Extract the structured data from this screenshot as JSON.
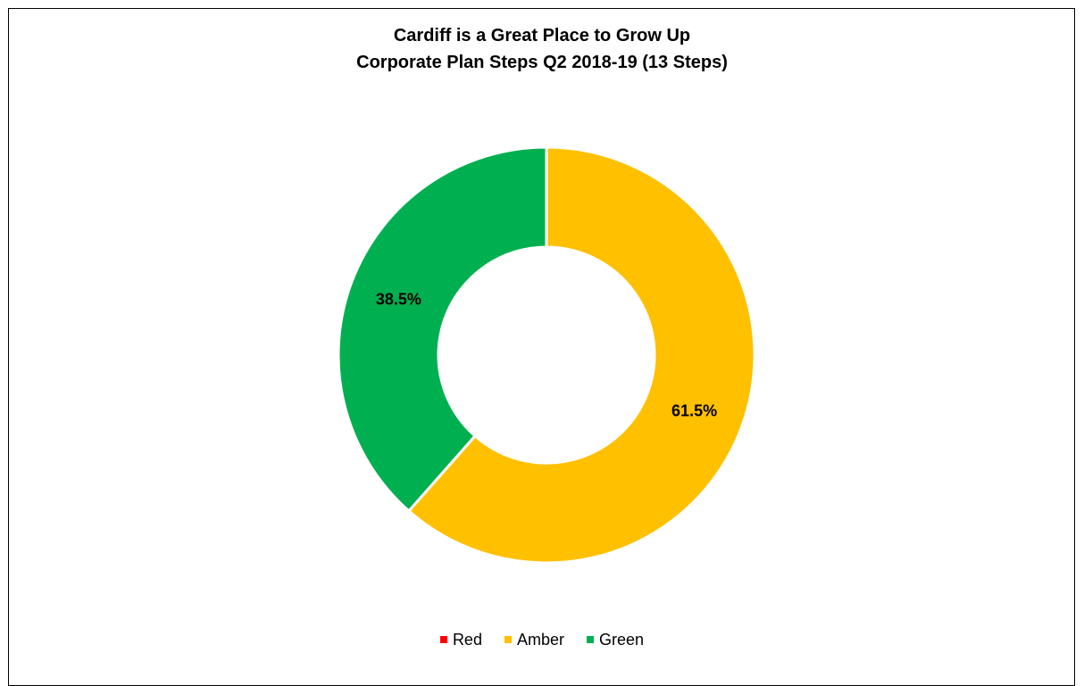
{
  "chart_data": {
    "type": "pie",
    "variant": "donut",
    "title": "Cardiff is a Great Place to Grow Up",
    "subtitle": "Corporate Plan Steps Q2 2018-19 (13 Steps)",
    "categories": [
      "Red",
      "Amber",
      "Green"
    ],
    "values": [
      0.0,
      61.5,
      38.5
    ],
    "data_labels": [
      "",
      "61.5%",
      "38.5%"
    ],
    "colors": [
      "#ff0000",
      "#ffc000",
      "#00b050"
    ],
    "legend_position": "bottom"
  }
}
